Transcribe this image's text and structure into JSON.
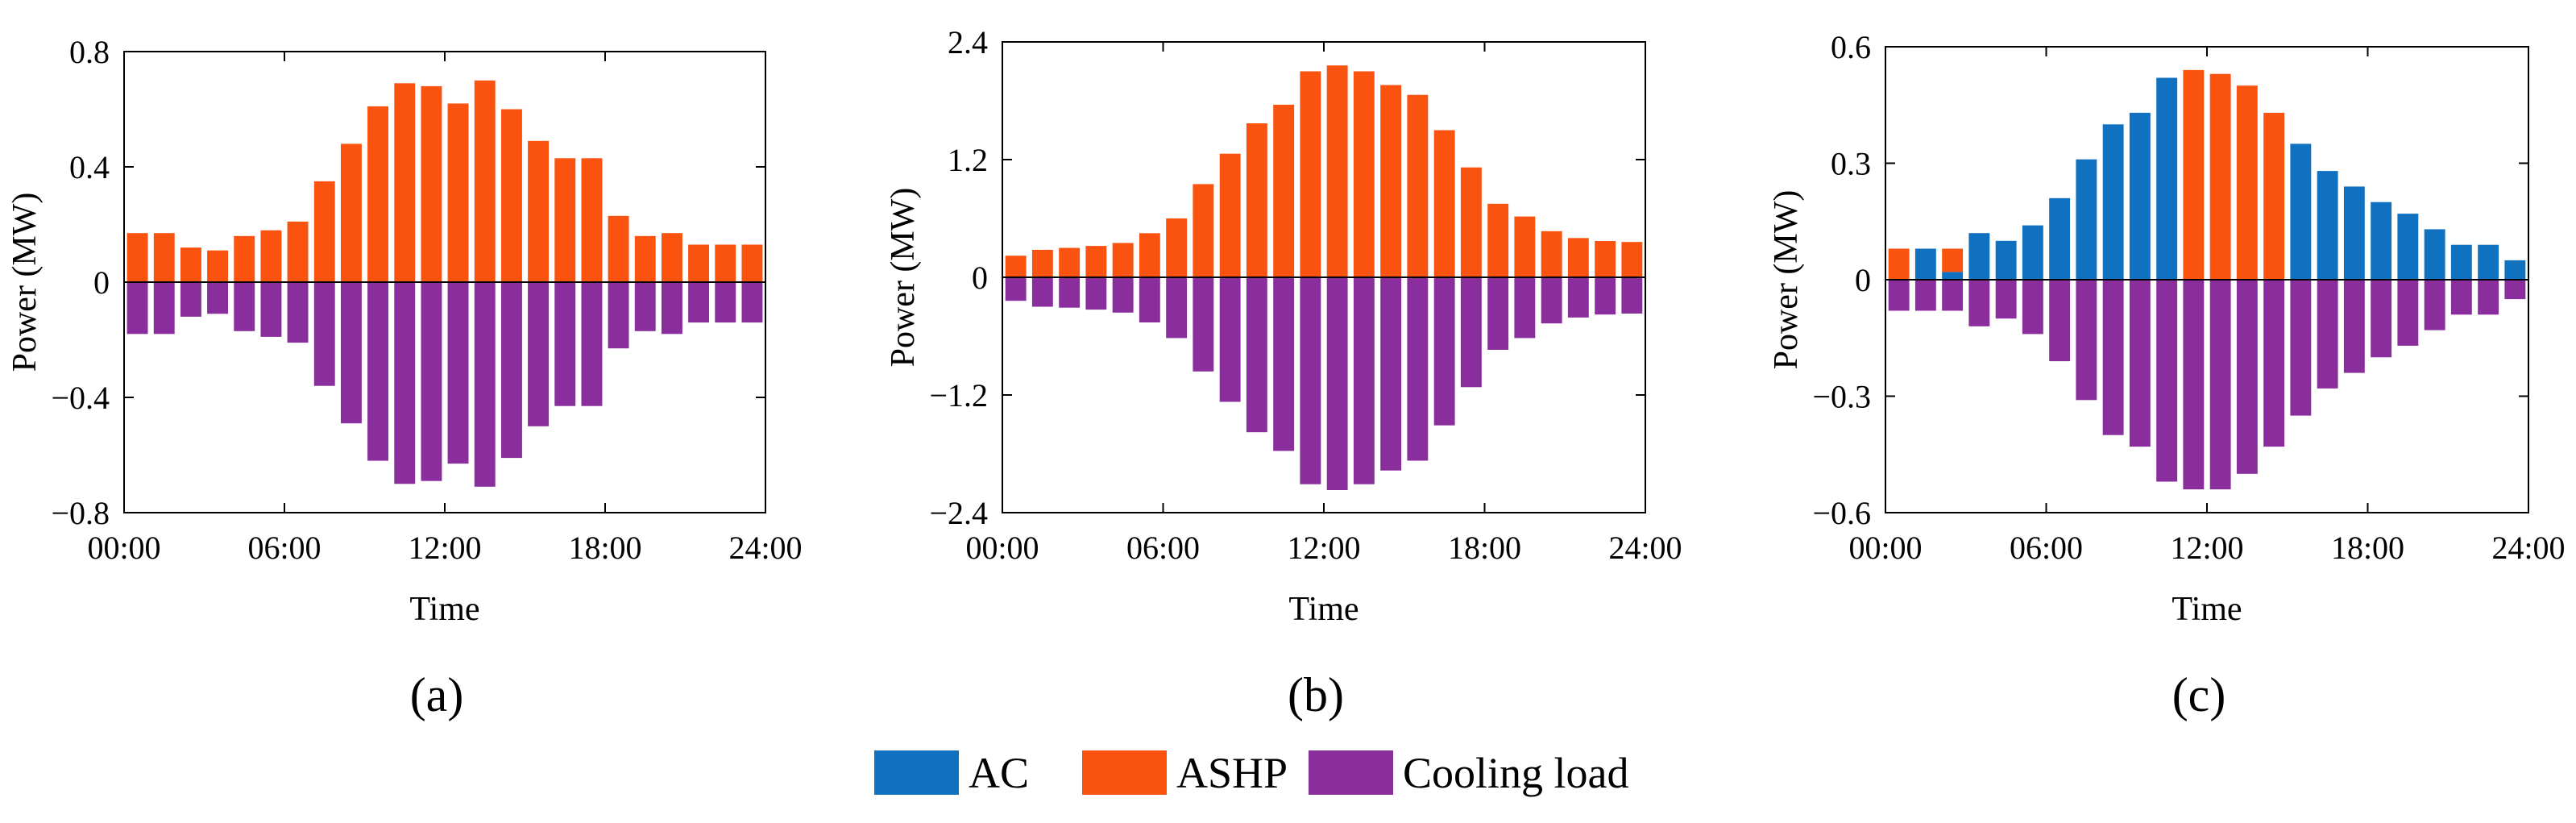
{
  "colors": {
    "AC": "#1071C1",
    "ASHP": "#FA520F",
    "Cooling load": "#8A2E9E",
    "axis": "#000000"
  },
  "legend": [
    {
      "label": "AC",
      "color": "#1071C1"
    },
    {
      "label": "ASHP",
      "color": "#FA520F"
    },
    {
      "label": "Cooling load",
      "color": "#8A2E9E"
    }
  ],
  "chart_data": [
    {
      "type": "bar",
      "panel_label": "(a)",
      "xlabel": "Time",
      "ylabel": "Power (MW)",
      "ylim": [
        -0.8,
        0.8
      ],
      "yticks": [
        -0.8,
        -0.4,
        0,
        0.4,
        0.8
      ],
      "ytick_labels": [
        "−0.8",
        "−0.4",
        "0",
        "0.4",
        "0.8"
      ],
      "xlim": [
        0,
        24
      ],
      "xtick_labels": [
        "00:00",
        "06:00",
        "12:00",
        "18:00",
        "24:00"
      ],
      "hours": [
        1,
        2,
        3,
        4,
        5,
        6,
        7,
        8,
        9,
        10,
        11,
        12,
        13,
        14,
        15,
        16,
        17,
        18,
        19,
        20,
        21,
        22,
        23,
        24
      ],
      "series": [
        {
          "name": "AC",
          "values": [
            0,
            0,
            0,
            0,
            0,
            0,
            0,
            0,
            0,
            0,
            0,
            0,
            0,
            0,
            0,
            0,
            0,
            0,
            0,
            0,
            0,
            0,
            0,
            0
          ]
        },
        {
          "name": "ASHP",
          "values": [
            0.17,
            0.17,
            0.12,
            0.11,
            0.16,
            0.18,
            0.21,
            0.35,
            0.48,
            0.61,
            0.69,
            0.68,
            0.62,
            0.7,
            0.6,
            0.49,
            0.43,
            0.43,
            0.23,
            0.16,
            0.17,
            0.13,
            0.13,
            0.13
          ]
        },
        {
          "name": "Cooling load",
          "values": [
            -0.18,
            -0.18,
            -0.12,
            -0.11,
            -0.17,
            -0.19,
            -0.21,
            -0.36,
            -0.49,
            -0.62,
            -0.7,
            -0.69,
            -0.63,
            -0.71,
            -0.61,
            -0.5,
            -0.43,
            -0.43,
            -0.23,
            -0.17,
            -0.18,
            -0.14,
            -0.14,
            -0.14
          ]
        }
      ]
    },
    {
      "type": "bar",
      "panel_label": "(b)",
      "xlabel": "Time",
      "ylabel": "Power (MW)",
      "ylim": [
        -2.4,
        2.4
      ],
      "yticks": [
        -2.4,
        -1.2,
        0,
        1.2,
        2.4
      ],
      "ytick_labels": [
        "−2.4",
        "−1.2",
        "0",
        "1.2",
        "2.4"
      ],
      "xlim": [
        0,
        24
      ],
      "xtick_labels": [
        "00:00",
        "06:00",
        "12:00",
        "18:00",
        "24:00"
      ],
      "hours": [
        1,
        2,
        3,
        4,
        5,
        6,
        7,
        8,
        9,
        10,
        11,
        12,
        13,
        14,
        15,
        16,
        17,
        18,
        19,
        20,
        21,
        22,
        23,
        24
      ],
      "series": [
        {
          "name": "AC",
          "values": [
            0,
            0,
            0,
            0,
            0,
            0,
            0,
            0,
            0,
            0,
            0,
            0,
            0,
            0,
            0,
            0,
            0,
            0,
            0,
            0,
            0,
            0,
            0,
            0
          ]
        },
        {
          "name": "ASHP",
          "values": [
            0.22,
            0.28,
            0.3,
            0.32,
            0.35,
            0.45,
            0.6,
            0.95,
            1.26,
            1.57,
            1.76,
            2.1,
            2.16,
            2.1,
            1.96,
            1.86,
            1.5,
            1.12,
            0.75,
            0.62,
            0.47,
            0.4,
            0.37,
            0.36
          ]
        },
        {
          "name": "Cooling load",
          "values": [
            -0.24,
            -0.3,
            -0.31,
            -0.33,
            -0.36,
            -0.46,
            -0.62,
            -0.96,
            -1.27,
            -1.58,
            -1.77,
            -2.11,
            -2.17,
            -2.11,
            -1.97,
            -1.87,
            -1.51,
            -1.12,
            -0.74,
            -0.62,
            -0.47,
            -0.41,
            -0.38,
            -0.37
          ]
        }
      ]
    },
    {
      "type": "bar",
      "panel_label": "(c)",
      "xlabel": "Time",
      "ylabel": "Power (MW)",
      "ylim": [
        -0.6,
        0.6
      ],
      "yticks": [
        -0.6,
        -0.3,
        0,
        0.3,
        0.6
      ],
      "ytick_labels": [
        "−0.6",
        "−0.3",
        "0",
        "0.3",
        "0.6"
      ],
      "xlim": [
        0,
        24
      ],
      "xtick_labels": [
        "00:00",
        "06:00",
        "12:00",
        "18:00",
        "24:00"
      ],
      "hours": [
        1,
        2,
        3,
        4,
        5,
        6,
        7,
        8,
        9,
        10,
        11,
        12,
        13,
        14,
        15,
        16,
        17,
        18,
        19,
        20,
        21,
        22,
        23,
        24
      ],
      "series": [
        {
          "name": "AC",
          "values": [
            0,
            0.08,
            0.02,
            0.12,
            0.1,
            0.14,
            0.21,
            0.31,
            0.4,
            0.43,
            0.52,
            0,
            0,
            0,
            0,
            0.35,
            0.28,
            0.24,
            0.2,
            0.17,
            0.13,
            0.09,
            0.09,
            0.05
          ]
        },
        {
          "name": "ASHP",
          "values": [
            0.08,
            0,
            0.06,
            0,
            0,
            0,
            0,
            0,
            0,
            0,
            0,
            0.54,
            0.53,
            0.5,
            0.43,
            0,
            0,
            0,
            0,
            0,
            0,
            0,
            0,
            0
          ]
        },
        {
          "name": "Cooling load",
          "values": [
            -0.08,
            -0.08,
            -0.08,
            -0.12,
            -0.1,
            -0.14,
            -0.21,
            -0.31,
            -0.4,
            -0.43,
            -0.52,
            -0.54,
            -0.54,
            -0.5,
            -0.43,
            -0.35,
            -0.28,
            -0.24,
            -0.2,
            -0.17,
            -0.13,
            -0.09,
            -0.09,
            -0.05
          ]
        }
      ]
    }
  ]
}
